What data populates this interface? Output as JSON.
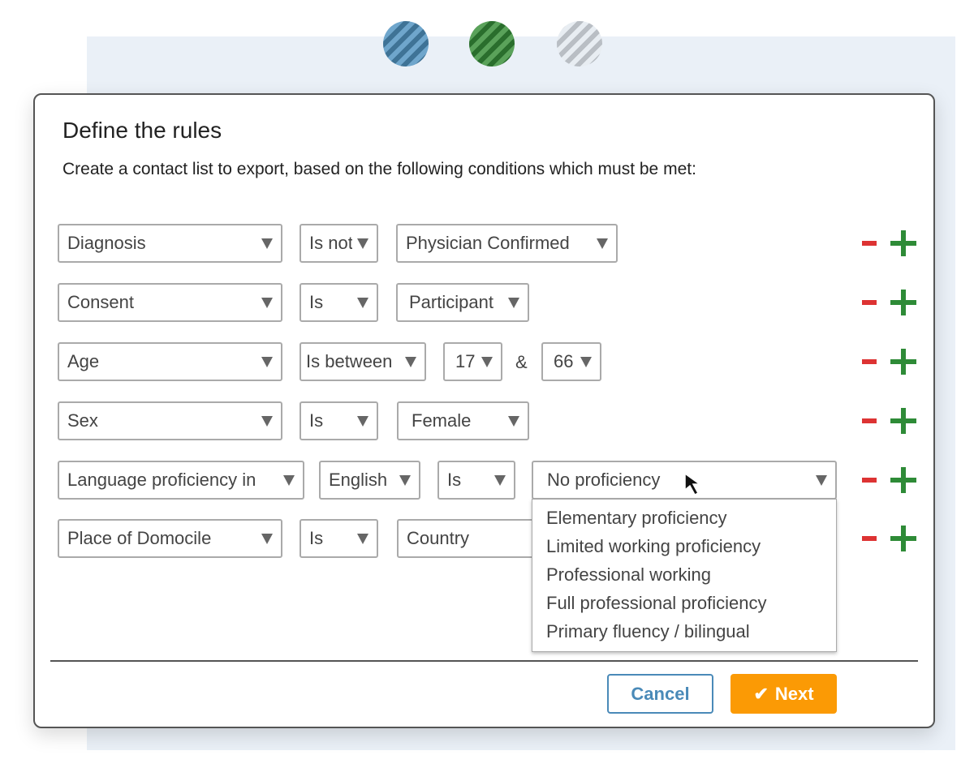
{
  "steps": [
    {
      "state": "done",
      "color": "#4a83ab"
    },
    {
      "state": "current",
      "color": "#2e7a31"
    },
    {
      "state": "pending",
      "color": "#b9bec4"
    }
  ],
  "dialog": {
    "title": "Define the rules",
    "subtitle": "Create a contact list to export, based on the following conditions which must be met:",
    "rows": [
      {
        "field": "Diagnosis",
        "operator": "Is not",
        "value": "Physician Confirmed"
      },
      {
        "field": "Consent",
        "operator": "Is",
        "value": "Participant"
      },
      {
        "field": "Age",
        "operator": "Is between",
        "from": "17",
        "joiner": "&",
        "to": "66"
      },
      {
        "field": "Sex",
        "operator": "Is",
        "value": "Female"
      },
      {
        "field": "Language proficiency in",
        "language": "English",
        "operator": "Is",
        "value": "No proficiency"
      },
      {
        "field": "Place of Domocile",
        "operator": "Is",
        "value": "Country"
      }
    ],
    "dropdown_options": [
      "Elementary proficiency",
      "Limited working proficiency",
      "Professional working",
      "Full professional proficiency",
      "Primary fluency / bilingual"
    ],
    "cancel_label": "Cancel",
    "next_label": "Next",
    "colors": {
      "remove": "#dd3333",
      "add": "#2e8b37",
      "next": "#fb9a05",
      "cancel": "#4a8ab8"
    }
  }
}
